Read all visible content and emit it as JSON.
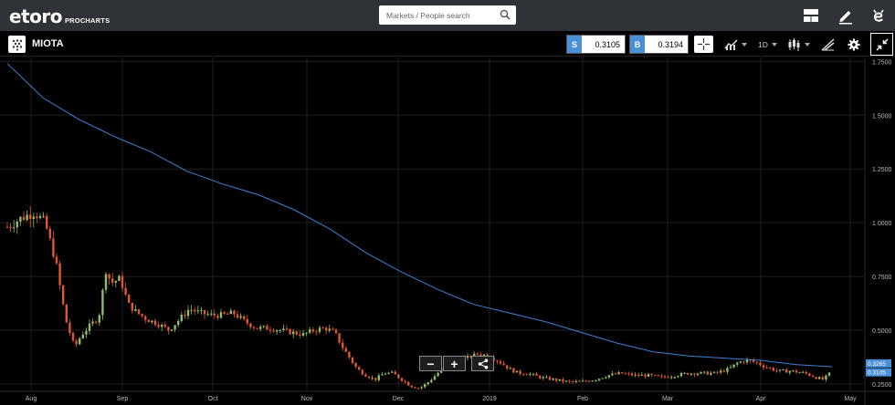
{
  "header": {
    "logo_text": "etoro",
    "logo_sub": "PROCHARTS",
    "search_placeholder": "Markets / People search"
  },
  "toolbar": {
    "asset_name": "MIOTA",
    "sell_tag": "S",
    "sell_price": "0.3105",
    "buy_tag": "B",
    "buy_price": "0.3194",
    "timeframe": "1D"
  },
  "zoom_controls": {
    "zoom_out": "−",
    "zoom_in": "+"
  },
  "colors": {
    "up": "#8fbc6a",
    "down": "#e0562e",
    "ma_line": "#3d7fd6",
    "grid": "#1f1f1f",
    "accent": "#4a90d9"
  },
  "chart_data": {
    "type": "candlestick",
    "x_labels": [
      "Aug",
      "Sep",
      "Oct",
      "Nov",
      "Dec",
      "2019",
      "Feb",
      "Mar",
      "Apr",
      "May"
    ],
    "y_ticks": [
      "1.7500",
      "1.5000",
      "1.2500",
      "1.0000",
      "0.7500",
      "0.5000",
      "0.2500"
    ],
    "ylim": [
      0.22,
      1.76
    ],
    "price_labels": [
      "0.3265",
      "0.3105"
    ],
    "grid": true,
    "close_path": [
      [
        0,
        0.98
      ],
      [
        1.5,
        1.02
      ],
      [
        3,
        1.05
      ],
      [
        4.2,
        1.0
      ],
      [
        5.4,
        0.82
      ],
      [
        6.5,
        0.55
      ],
      [
        7.5,
        0.42
      ],
      [
        8.3,
        0.48
      ],
      [
        9.2,
        0.52
      ],
      [
        10.2,
        0.56
      ],
      [
        11.0,
        0.78
      ],
      [
        11.6,
        0.72
      ],
      [
        12.6,
        0.74
      ],
      [
        13.5,
        0.62
      ],
      [
        14.5,
        0.58
      ],
      [
        15.6,
        0.55
      ],
      [
        16.8,
        0.53
      ],
      [
        18.0,
        0.5
      ],
      [
        19.2,
        0.55
      ],
      [
        20.3,
        0.6
      ],
      [
        21.5,
        0.58
      ],
      [
        22.8,
        0.57
      ],
      [
        24.0,
        0.57
      ],
      [
        25.2,
        0.58
      ],
      [
        26.5,
        0.54
      ],
      [
        27.8,
        0.51
      ],
      [
        29.0,
        0.51
      ],
      [
        30.5,
        0.5
      ],
      [
        31.7,
        0.49
      ],
      [
        33.0,
        0.48
      ],
      [
        34.2,
        0.5
      ],
      [
        35.4,
        0.51
      ],
      [
        36.5,
        0.49
      ],
      [
        37.4,
        0.42
      ],
      [
        38.2,
        0.37
      ],
      [
        39.0,
        0.32
      ],
      [
        40.0,
        0.29
      ],
      [
        41.0,
        0.27
      ],
      [
        42.0,
        0.3
      ],
      [
        43.0,
        0.3
      ],
      [
        44.0,
        0.27
      ],
      [
        45.0,
        0.24
      ],
      [
        46.0,
        0.23
      ],
      [
        47.0,
        0.26
      ],
      [
        48.0,
        0.3
      ],
      [
        49.0,
        0.35
      ],
      [
        50.0,
        0.36
      ],
      [
        51.2,
        0.37
      ],
      [
        52.5,
        0.39
      ],
      [
        53.8,
        0.38
      ],
      [
        55.0,
        0.35
      ],
      [
        56.0,
        0.32
      ],
      [
        57.0,
        0.3
      ],
      [
        58.0,
        0.3
      ],
      [
        59.5,
        0.28
      ],
      [
        61.0,
        0.27
      ],
      [
        62.5,
        0.26
      ],
      [
        64.0,
        0.26
      ],
      [
        65.5,
        0.27
      ],
      [
        67.0,
        0.29
      ],
      [
        68.5,
        0.3
      ],
      [
        70.0,
        0.29
      ],
      [
        71.5,
        0.29
      ],
      [
        73.0,
        0.28
      ],
      [
        74.5,
        0.29
      ],
      [
        76.0,
        0.3
      ],
      [
        77.5,
        0.3
      ],
      [
        79.0,
        0.3
      ],
      [
        80.5,
        0.32
      ],
      [
        81.5,
        0.35
      ],
      [
        82.5,
        0.36
      ],
      [
        83.5,
        0.35
      ],
      [
        84.5,
        0.33
      ],
      [
        86.0,
        0.31
      ],
      [
        87.5,
        0.31
      ],
      [
        89.0,
        0.3
      ],
      [
        90.2,
        0.28
      ],
      [
        91.0,
        0.27
      ],
      [
        92.0,
        0.31
      ]
    ],
    "ma_line": [
      [
        0,
        1.74
      ],
      [
        4,
        1.58
      ],
      [
        8,
        1.48
      ],
      [
        12,
        1.4
      ],
      [
        16,
        1.33
      ],
      [
        20,
        1.24
      ],
      [
        24,
        1.18
      ],
      [
        28,
        1.13
      ],
      [
        32,
        1.06
      ],
      [
        36,
        0.97
      ],
      [
        40,
        0.86
      ],
      [
        44,
        0.77
      ],
      [
        48,
        0.69
      ],
      [
        52,
        0.62
      ],
      [
        56,
        0.58
      ],
      [
        60,
        0.54
      ],
      [
        64,
        0.49
      ],
      [
        68,
        0.44
      ],
      [
        72,
        0.4
      ],
      [
        76,
        0.38
      ],
      [
        80,
        0.37
      ],
      [
        84,
        0.36
      ],
      [
        88,
        0.34
      ],
      [
        92,
        0.33
      ]
    ]
  }
}
